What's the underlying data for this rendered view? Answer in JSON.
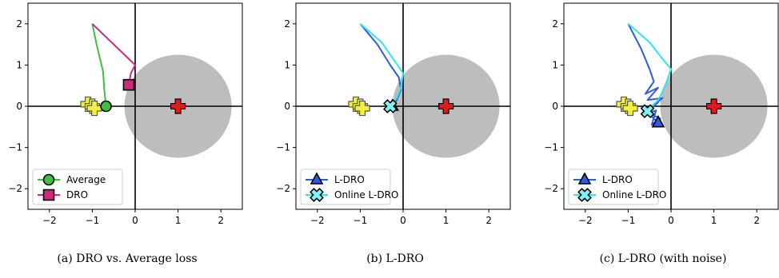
{
  "chart_data": [
    {
      "type": "line",
      "caption": "(a)  DRO vs. Average loss",
      "xlim": [
        -2.5,
        2.5
      ],
      "ylim": [
        -2.5,
        2.5
      ],
      "xticks": [
        -2,
        -1,
        0,
        1,
        2
      ],
      "yticks": [
        -2,
        -1,
        0,
        1,
        2
      ],
      "tick_labels_x": [
        "−2",
        "−1",
        "0",
        "1",
        "2"
      ],
      "tick_labels_y": [
        "−2",
        "−1",
        "0",
        "1",
        "2"
      ],
      "legend_position": "bottom-left",
      "circle": {
        "center": [
          1,
          0
        ],
        "radius": 1.25,
        "color": "#bdbdbd"
      },
      "targets": {
        "yellow_crosses": [
          [
            -1.1,
            0.05
          ],
          [
            -1.0,
            0.0
          ],
          [
            -0.95,
            -0.05
          ]
        ],
        "red_cross": [
          1,
          0
        ]
      },
      "series": [
        {
          "name": "Average",
          "color": "#3fbf3f",
          "marker": "circle",
          "marker_fill": "#3fbf3f",
          "x": [
            -1.0,
            -0.9,
            -0.75,
            -0.72,
            -0.68
          ],
          "y": [
            2.0,
            1.5,
            0.85,
            0.4,
            0.0
          ]
        },
        {
          "name": "DRO",
          "color": "#d0288a",
          "marker": "square",
          "marker_fill": "#d0287a",
          "x": [
            -1.0,
            -0.5,
            0.0,
            -0.1,
            -0.15
          ],
          "y": [
            2.0,
            1.5,
            1.0,
            0.8,
            0.52
          ]
        }
      ]
    },
    {
      "type": "line",
      "caption": "(b)  L-DRO",
      "xlim": [
        -2.5,
        2.5
      ],
      "ylim": [
        -2.5,
        2.5
      ],
      "xticks": [
        -2,
        -1,
        0,
        1,
        2
      ],
      "yticks": [
        -2,
        -1,
        0,
        1,
        2
      ],
      "tick_labels_x": [
        "−2",
        "−1",
        "0",
        "1",
        "2"
      ],
      "tick_labels_y": [
        "−2",
        "−1",
        "0",
        "1",
        "2"
      ],
      "legend_position": "bottom-left",
      "circle": {
        "center": [
          1,
          0
        ],
        "radius": 1.25,
        "color": "#bdbdbd"
      },
      "targets": {
        "yellow_crosses": [
          [
            -1.1,
            0.05
          ],
          [
            -1.0,
            0.0
          ],
          [
            -0.95,
            -0.05
          ]
        ],
        "red_cross": [
          1,
          0
        ]
      },
      "series": [
        {
          "name": "L-DRO",
          "color": "#2e5be0",
          "marker": "triangle",
          "marker_fill": "#2e5be0",
          "x": [
            -1.0,
            -0.6,
            -0.3,
            -0.1,
            -0.05,
            -0.15,
            -0.25
          ],
          "y": [
            2.0,
            1.5,
            1.0,
            0.7,
            0.4,
            0.15,
            0.0
          ]
        },
        {
          "name": "Online L-DRO",
          "color": "#2ee6f0",
          "marker": "x",
          "marker_fill": "#7ff3f3",
          "x": [
            -1.0,
            -0.5,
            -0.2,
            0.0,
            -0.05,
            -0.15,
            -0.3
          ],
          "y": [
            2.0,
            1.55,
            1.1,
            0.8,
            0.45,
            0.2,
            0.0
          ]
        }
      ]
    },
    {
      "type": "line",
      "caption": "(c)  L-DRO (with noise)",
      "xlim": [
        -2.5,
        2.5
      ],
      "ylim": [
        -2.5,
        2.5
      ],
      "xticks": [
        -2,
        -1,
        0,
        1,
        2
      ],
      "yticks": [
        -2,
        -1,
        0,
        1,
        2
      ],
      "tick_labels_x": [
        "−2",
        "−1",
        "0",
        "1",
        "2"
      ],
      "tick_labels_y": [
        "−2",
        "−1",
        "0",
        "1",
        "2"
      ],
      "legend_position": "bottom-left",
      "circle": {
        "center": [
          1,
          0
        ],
        "radius": 1.25,
        "color": "#bdbdbd"
      },
      "targets": {
        "yellow_crosses": [
          [
            -1.1,
            0.05
          ],
          [
            -1.0,
            0.0
          ],
          [
            -0.95,
            -0.05
          ]
        ],
        "red_cross": [
          1,
          0
        ]
      },
      "series": [
        {
          "name": "L-DRO",
          "color": "#2e5be0",
          "marker": "triangle",
          "marker_fill": "#2e5be0",
          "x": [
            -1.0,
            -0.7,
            -0.5,
            -0.4,
            -0.6,
            -0.3,
            -0.55,
            -0.2,
            -0.5,
            -0.3,
            -0.6,
            -0.35,
            -0.45,
            -0.25,
            -0.55,
            -0.3
          ],
          "y": [
            2.0,
            1.4,
            0.9,
            0.6,
            0.3,
            0.45,
            0.15,
            0.2,
            -0.05,
            0.1,
            -0.2,
            -0.1,
            -0.45,
            -0.3,
            -0.15,
            -0.4
          ]
        },
        {
          "name": "Online L-DRO",
          "color": "#2ee6f0",
          "marker": "x",
          "marker_fill": "#7ff3f3",
          "x": [
            -1.0,
            -0.5,
            -0.2,
            0.0,
            -0.1,
            -0.2,
            -0.3,
            -0.45,
            -0.55
          ],
          "y": [
            2.0,
            1.55,
            1.15,
            0.9,
            0.6,
            0.35,
            0.15,
            0.0,
            -0.12
          ]
        }
      ]
    }
  ]
}
